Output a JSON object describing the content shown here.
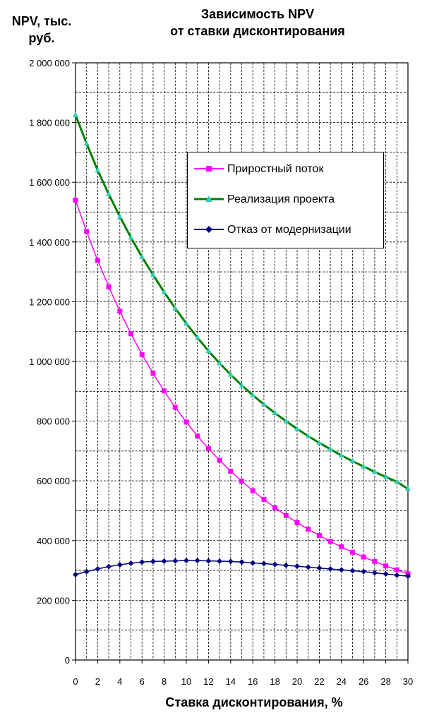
{
  "chart_data": {
    "type": "line",
    "title_lines": [
      "Зависимость NPV",
      "от ставки дисконтирования"
    ],
    "ylabel_lines": [
      "NPV, тыс.",
      "руб."
    ],
    "xlabel": "Ставка дисконтирования,  %",
    "xlim": [
      0,
      30
    ],
    "ylim": [
      0,
      2000000
    ],
    "x_ticks": [
      "0",
      "2",
      "4",
      "6",
      "8",
      "10",
      "12",
      "14",
      "16",
      "18",
      "20",
      "22",
      "24",
      "26",
      "28",
      "30"
    ],
    "y_ticks": [
      "0",
      "200 000",
      "400 000",
      "600 000",
      "800 000",
      "1 000 000",
      "1 200 000",
      "1 400 000",
      "1 600 000",
      "1 800 000",
      "2 000 000"
    ],
    "grid": true,
    "legend_position": "right",
    "x": [
      0,
      1,
      2,
      3,
      4,
      5,
      6,
      7,
      8,
      9,
      10,
      11,
      12,
      13,
      14,
      15,
      16,
      17,
      18,
      19,
      20,
      21,
      22,
      23,
      24,
      25,
      26,
      27,
      28,
      29,
      30
    ],
    "series": [
      {
        "name": "Приростный поток",
        "color": "#ff00ff",
        "marker": "square",
        "line_width": 1.5,
        "values": [
          1540000,
          1435000,
          1338000,
          1250000,
          1168000,
          1093000,
          1023000,
          960000,
          901000,
          846000,
          797000,
          750000,
          708000,
          669000,
          632000,
          599000,
          567000,
          538000,
          510000,
          484000,
          460000,
          438000,
          417000,
          397000,
          379000,
          361000,
          345000,
          330000,
          315000,
          302000,
          289000
        ]
      },
      {
        "name": "Реализация проекта",
        "color": "#008000",
        "marker": "triangle",
        "marker_color": "#33ccbb",
        "line_width": 3,
        "values": [
          1825000,
          1730000,
          1640000,
          1560000,
          1485000,
          1415000,
          1350000,
          1290000,
          1232000,
          1178000,
          1127000,
          1080000,
          1035000,
          994000,
          956000,
          920000,
          887000,
          856000,
          827000,
          800000,
          774000,
          750000,
          727000,
          706000,
          685000,
          666000,
          648000,
          630000,
          613000,
          597000,
          573000
        ]
      },
      {
        "name": "Отказ от модернизации",
        "color": "#000080",
        "marker": "diamond",
        "line_width": 1.5,
        "values": [
          286000,
          296000,
          305000,
          313000,
          319000,
          324000,
          328000,
          330000,
          331000,
          332000,
          333000,
          333000,
          332000,
          331000,
          330000,
          328000,
          325000,
          323000,
          320000,
          317000,
          314000,
          311000,
          308000,
          305000,
          302000,
          299000,
          296000,
          292000,
          288000,
          284000,
          281000
        ]
      }
    ]
  }
}
